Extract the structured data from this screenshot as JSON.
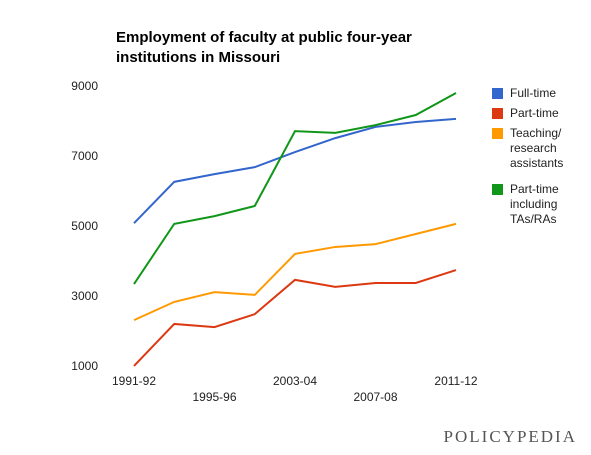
{
  "chart_data": {
    "type": "line",
    "title": "Employment of faculty at public four-year institutions in Missouri",
    "categories": [
      "1991-92",
      null,
      "1995-96",
      null,
      "2003-04",
      null,
      "2007-08",
      null,
      "2011-12"
    ],
    "series": [
      {
        "name": "Full-time",
        "color": "#3366cc",
        "values": [
          5110,
          6290,
          6510,
          6710,
          7140,
          7540,
          7860,
          8000,
          8090
        ]
      },
      {
        "name": "Part-time",
        "color": "#dc3912",
        "values": [
          1030,
          2230,
          2140,
          2510,
          3490,
          3290,
          3400,
          3400,
          3770
        ]
      },
      {
        "name": "Teaching/ research assistants",
        "color": "#ff9900",
        "values": [
          2340,
          2860,
          3140,
          3060,
          4230,
          4430,
          4510,
          4800,
          5090
        ]
      },
      {
        "name": "Part-time including TAs/RAs",
        "color": "#109618",
        "values": [
          3370,
          5090,
          5310,
          5600,
          7740,
          7690,
          7910,
          8200,
          8830
        ]
      }
    ],
    "ylim": [
      1000,
      9000
    ],
    "yticks": [
      1000,
      3000,
      5000,
      7000,
      9000
    ],
    "grid": false,
    "legend": "right",
    "watermark": "POLICYPEDIA"
  }
}
